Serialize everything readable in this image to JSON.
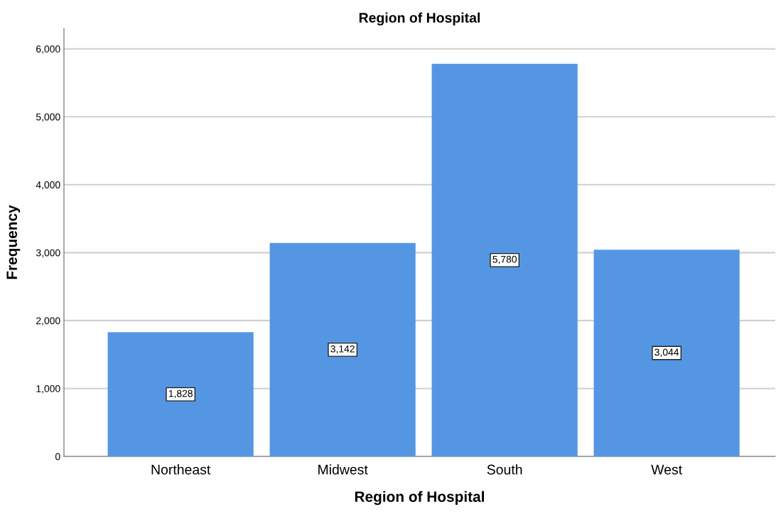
{
  "chart_data": {
    "type": "bar",
    "title": "Region of Hospital",
    "xlabel": "Region of Hospital",
    "ylabel": "Frequency",
    "categories": [
      "Northeast",
      "Midwest",
      "South",
      "West"
    ],
    "values": [
      1828,
      3142,
      5780,
      3044
    ],
    "value_labels": [
      "1,828",
      "3,142",
      "5,780",
      "3,044"
    ],
    "color": "#5596e3",
    "ylim": [
      0,
      6300
    ],
    "yticks": [
      {
        "value": 0,
        "label": "0"
      },
      {
        "value": 1000,
        "label": "1,000"
      },
      {
        "value": 2000,
        "label": "2,000"
      },
      {
        "value": 3000,
        "label": "3,000"
      },
      {
        "value": 4000,
        "label": "4,000"
      },
      {
        "value": 5000,
        "label": "5,000"
      },
      {
        "value": 6000,
        "label": "6,000"
      }
    ],
    "grid": "y"
  }
}
